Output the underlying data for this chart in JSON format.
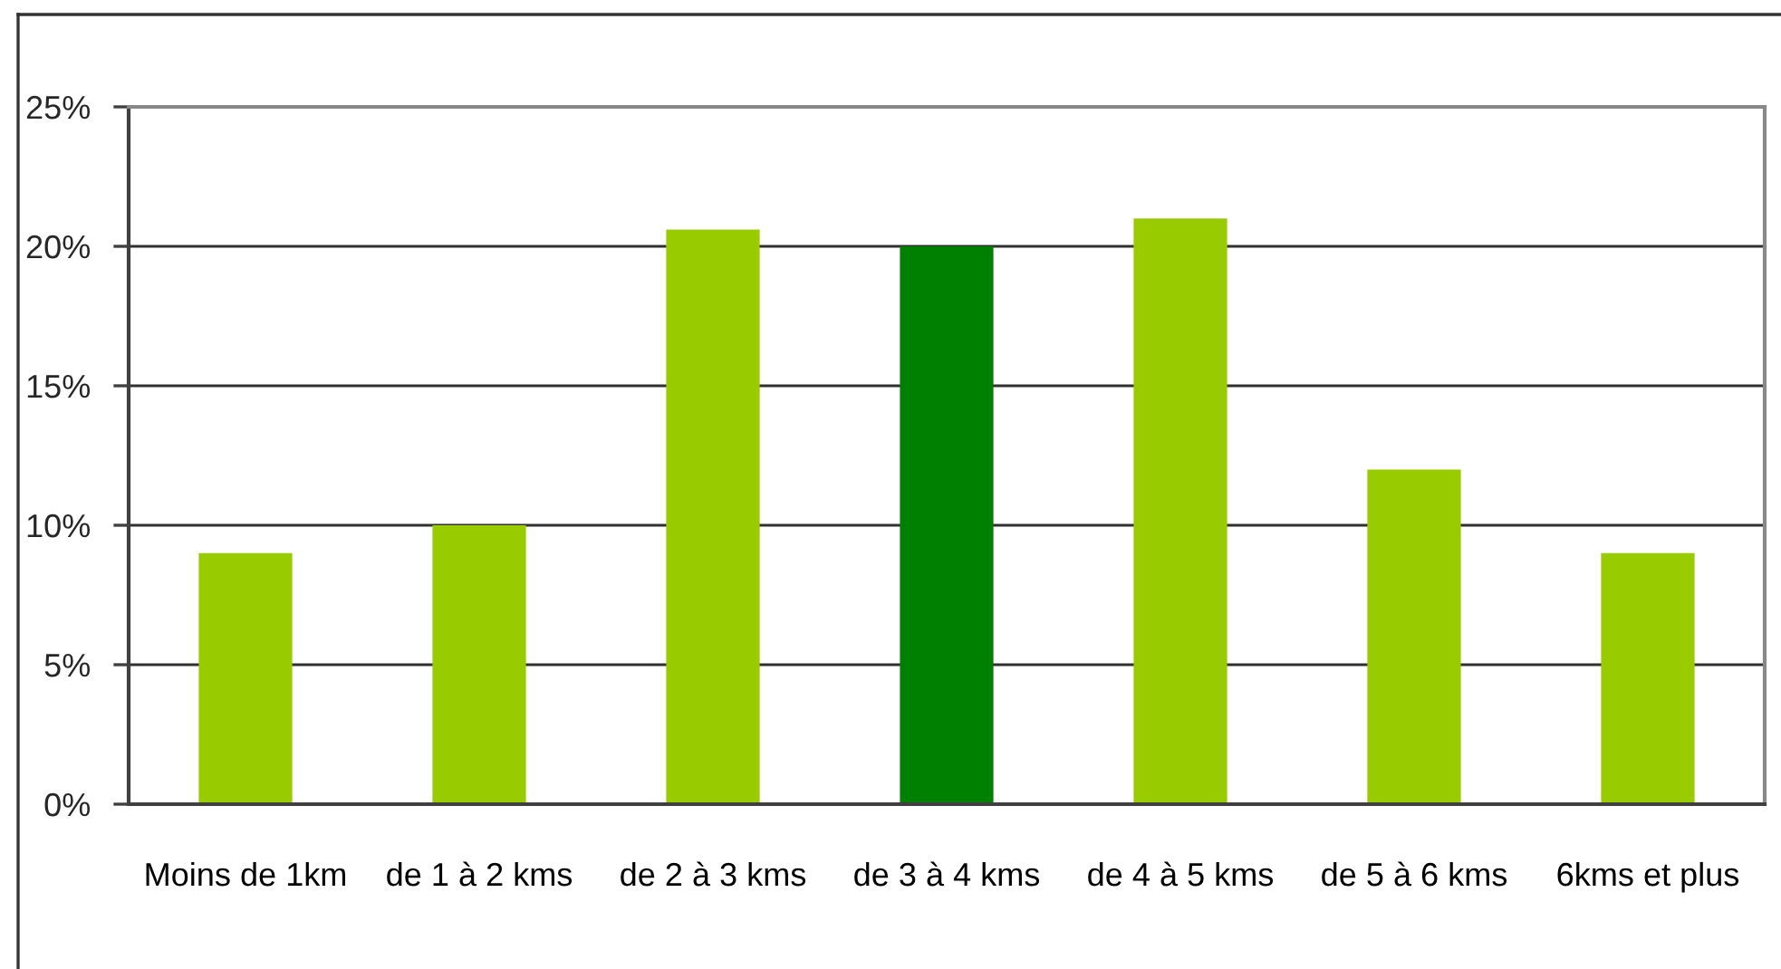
{
  "chart_data": {
    "type": "bar",
    "categories": [
      "Moins de 1km",
      "de 1 à 2 kms",
      "de 2 à 3 kms",
      "de 3 à 4 kms",
      "de 4 à 5 kms",
      "de 5 à 6 kms",
      "6kms et plus"
    ],
    "values": [
      9,
      10,
      20.6,
      20,
      21,
      12,
      9
    ],
    "colors": [
      "#99cc00",
      "#99cc00",
      "#99cc00",
      "#008000",
      "#99cc00",
      "#99cc00",
      "#99cc00"
    ],
    "ylim": [
      0,
      25
    ],
    "yticks": [
      {
        "value": 0,
        "label": "0%"
      },
      {
        "value": 5,
        "label": "5%"
      },
      {
        "value": 10,
        "label": "10%"
      },
      {
        "value": 15,
        "label": "15%"
      },
      {
        "value": 20,
        "label": "20%"
      },
      {
        "value": 25,
        "label": "25%"
      }
    ],
    "grid": "y"
  }
}
